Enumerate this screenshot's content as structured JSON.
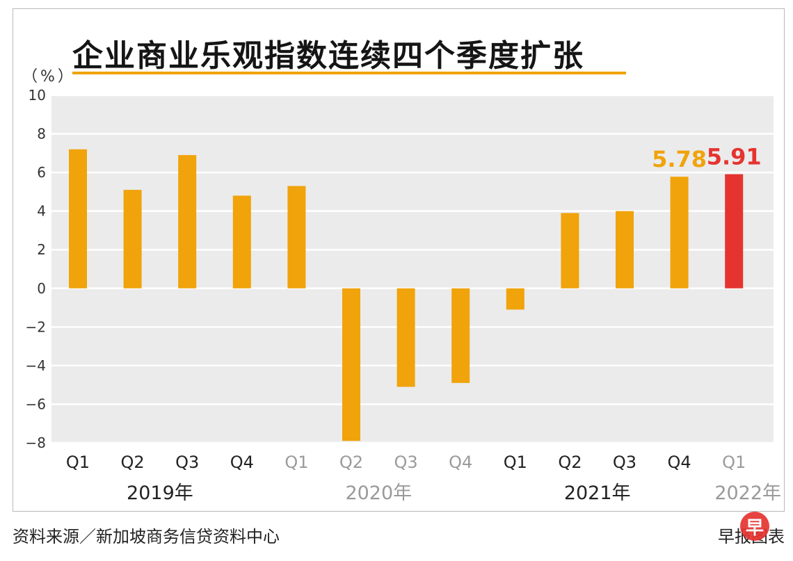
{
  "title": "企业商业乐观指数连续四个季度扩张",
  "unit_label": "（%）",
  "source": "资料来源／新加坡商务信贷资料中心",
  "credit": "早报图表",
  "logo_text": "早",
  "colors": {
    "bar": "#f0a30a",
    "highlight": "#e53430",
    "gridbg": "#ebebeb",
    "dim": "#9a9a9a"
  },
  "chart_data": {
    "type": "bar",
    "title": "企业商业乐观指数连续四个季度扩张",
    "ylabel": "（%）",
    "ylim": [
      -8,
      10
    ],
    "yticks": [
      "10",
      "8",
      "6",
      "4",
      "2",
      "0",
      "-2",
      "-4",
      "-6",
      "-8"
    ],
    "categories": [
      "Q1",
      "Q2",
      "Q3",
      "Q4",
      "Q1",
      "Q2",
      "Q3",
      "Q4",
      "Q1",
      "Q2",
      "Q3",
      "Q4",
      "Q1"
    ],
    "values": [
      7.2,
      5.1,
      6.9,
      4.8,
      5.3,
      -7.9,
      -5.1,
      -4.9,
      -1.1,
      3.9,
      4.0,
      5.78,
      5.91
    ],
    "years": [
      {
        "label": "2019年",
        "start": 0,
        "end": 3,
        "dim": false
      },
      {
        "label": "2020年",
        "start": 4,
        "end": 7,
        "dim": true
      },
      {
        "label": "2021年",
        "start": 8,
        "end": 11,
        "dim": false
      },
      {
        "label": "2022年",
        "start": 12,
        "end": 12,
        "dim": true
      }
    ],
    "data_labels": [
      {
        "index": 11,
        "text": "5.78",
        "color": "#f0a30a"
      },
      {
        "index": 12,
        "text": "5.91",
        "color": "#e53430"
      }
    ],
    "grid": true
  }
}
